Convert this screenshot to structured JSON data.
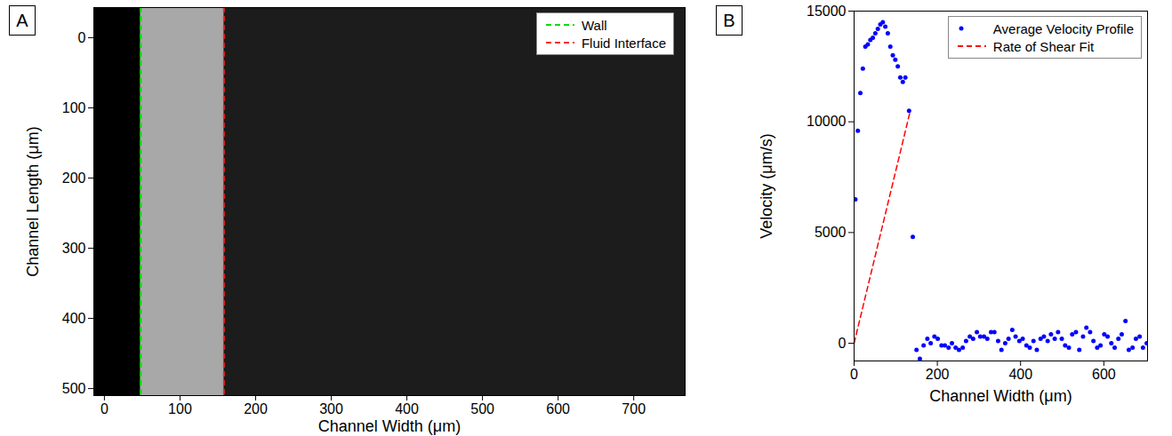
{
  "chart_data": [
    {
      "panel": "A",
      "type": "image",
      "xlabel": "Channel Width (μm)",
      "ylabel": "Channel Length (μm)",
      "xlim": [
        -14,
        768
      ],
      "xticks": [
        0,
        100,
        200,
        300,
        400,
        500,
        600,
        700
      ],
      "ylim": [
        510,
        -43
      ],
      "yticks": [
        0,
        100,
        200,
        300,
        400,
        500
      ],
      "series": [
        {
          "name": "Wall",
          "type": "vline",
          "color": "#00dd00",
          "line_style": "dashed",
          "x": 48
        },
        {
          "name": "Fluid Interface",
          "type": "vline",
          "color": "#ff2222",
          "line_style": "dashed",
          "x": 158
        }
      ],
      "legend": "upper right"
    },
    {
      "panel": "B",
      "type": "scatter",
      "xlabel": "Channel Width (μm)",
      "ylabel": "Velocity (μm/s)",
      "xlim": [
        0,
        705
      ],
      "xticks": [
        0,
        200,
        400,
        600
      ],
      "ylim": [
        -800,
        15000
      ],
      "yticks": [
        0,
        5000,
        10000,
        15000
      ],
      "series": [
        {
          "name": "Average Velocity Profile",
          "type": "scatter",
          "color": "#0000ff",
          "marker": "dot",
          "x": [
            3,
            9,
            15,
            21,
            27,
            33,
            39,
            45,
            51,
            57,
            63,
            69,
            75,
            81,
            87,
            93,
            99,
            105,
            111,
            117,
            123,
            132,
            141,
            150,
            158,
            167,
            176,
            184,
            193,
            201,
            210,
            218,
            227,
            235,
            244,
            252,
            261,
            269,
            278,
            286,
            295,
            303,
            312,
            320,
            329,
            337,
            346,
            354,
            363,
            371,
            380,
            388,
            397,
            405,
            414,
            422,
            431,
            439,
            448,
            456,
            465,
            473,
            482,
            490,
            499,
            507,
            516,
            524,
            533,
            541,
            550,
            558,
            567,
            575,
            584,
            592,
            601,
            609,
            618,
            626,
            635,
            643,
            652,
            660,
            669,
            677,
            686,
            694,
            703
          ],
          "values": [
            6500,
            9600,
            11300,
            12400,
            13400,
            13500,
            13700,
            13800,
            14000,
            14200,
            14400,
            14500,
            14300,
            14000,
            13400,
            13000,
            12800,
            12500,
            12000,
            11800,
            12000,
            10500,
            4800,
            -300,
            -700,
            -100,
            200,
            0,
            300,
            200,
            -100,
            -100,
            -200,
            0,
            -200,
            -300,
            -200,
            100,
            300,
            200,
            500,
            300,
            300,
            200,
            500,
            500,
            100,
            -300,
            0,
            200,
            600,
            300,
            100,
            200,
            -100,
            -200,
            100,
            -300,
            200,
            300,
            100,
            400,
            200,
            500,
            200,
            -100,
            -200,
            400,
            500,
            -300,
            300,
            700,
            500,
            100,
            -200,
            -100,
            400,
            300,
            0,
            -200,
            200,
            400,
            1000,
            -300,
            -200,
            200,
            300,
            -200,
            0
          ]
        },
        {
          "name": "Rate of Shear Fit",
          "type": "line",
          "color": "#ff0000",
          "line_style": "dashed",
          "x": [
            0,
            135
          ],
          "values": [
            0,
            10500
          ]
        }
      ],
      "legend": "upper right"
    }
  ]
}
